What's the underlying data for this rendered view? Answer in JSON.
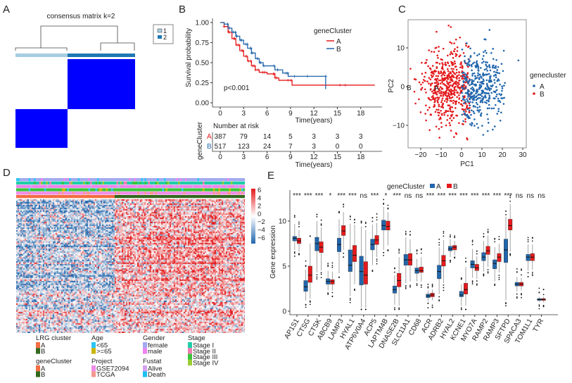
{
  "panels": {
    "a": "A",
    "b": "B",
    "c": "C",
    "d": "D",
    "e": "E"
  },
  "colors": {
    "red": "#e41a1c",
    "blue": "#2166ac",
    "consensus": "#0000ff",
    "light": "#a6cee3",
    "dark": "#1f78b4"
  },
  "chart_data": [
    {
      "type": "heatmap",
      "panel": "A",
      "title": "consensus matrix k=2",
      "legend": [
        "1",
        "2"
      ],
      "blocks": [
        {
          "cluster": "2",
          "value": 1
        },
        {
          "cluster": "1",
          "value": 1
        }
      ]
    },
    {
      "type": "line",
      "panel": "B",
      "ylabel": "Survival probability",
      "xlabel": "Time(years)",
      "ylim": [
        0,
        1
      ],
      "yticks": [
        "0.00",
        "0.25",
        "0.50",
        "0.75",
        "1.00"
      ],
      "xticks": [
        "0",
        "3",
        "6",
        "9",
        "12",
        "15",
        "18"
      ],
      "legend_title": "geneCluster",
      "pvalue": "p<0.001",
      "series": [
        {
          "name": "A",
          "color": "#e41a1c",
          "points": [
            [
              0,
              1
            ],
            [
              0.5,
              0.95
            ],
            [
              1,
              0.88
            ],
            [
              1.5,
              0.8
            ],
            [
              2,
              0.72
            ],
            [
              2.5,
              0.65
            ],
            [
              3,
              0.58
            ],
            [
              3.5,
              0.52
            ],
            [
              4,
              0.46
            ],
            [
              4.5,
              0.41
            ],
            [
              5,
              0.38
            ],
            [
              6,
              0.36
            ],
            [
              7,
              0.31
            ],
            [
              7.5,
              0.28
            ],
            [
              9.2,
              0.22
            ],
            [
              19.8,
              0.22
            ]
          ]
        },
        {
          "name": "B",
          "color": "#2166ac",
          "points": [
            [
              0,
              1
            ],
            [
              0.5,
              0.98
            ],
            [
              1,
              0.93
            ],
            [
              1.5,
              0.88
            ],
            [
              2,
              0.83
            ],
            [
              2.5,
              0.78
            ],
            [
              3,
              0.73
            ],
            [
              3.5,
              0.68
            ],
            [
              4,
              0.62
            ],
            [
              4.5,
              0.55
            ],
            [
              5,
              0.5
            ],
            [
              5.5,
              0.46
            ],
            [
              7,
              0.41
            ],
            [
              8,
              0.37
            ],
            [
              8.7,
              0.33
            ],
            [
              13.5,
              0.33
            ],
            [
              13.5,
              0.17
            ]
          ]
        }
      ],
      "risk_table": {
        "title": "Number at risk",
        "ylabel": "geneCluster",
        "xlabel": "Time(years)",
        "rows": [
          {
            "name": "A",
            "values": [
              "387",
              "79",
              "14",
              "5",
              "3",
              "3",
              "3"
            ]
          },
          {
            "name": "B",
            "values": [
              "517",
              "123",
              "24",
              "7",
              "3",
              "0",
              "0"
            ]
          }
        ]
      }
    },
    {
      "type": "scatter",
      "panel": "C",
      "xlabel": "PC1",
      "ylabel": "PC2",
      "xticks": [
        "-20",
        "-10",
        "0",
        "10",
        "20",
        "30"
      ],
      "yticks": [
        "-10",
        "0",
        "10"
      ],
      "xlim": [
        -26,
        31
      ],
      "ylim": [
        -16,
        17
      ],
      "legend_title": "genecluster",
      "series": [
        {
          "name": "A",
          "color": "#2166ac",
          "centroid": [
            9,
            0
          ]
        },
        {
          "name": "B",
          "color": "#e41a1c",
          "centroid": [
            -7,
            0
          ]
        }
      ]
    },
    {
      "type": "heatmap",
      "panel": "D",
      "colorbar_ticks": [
        "6",
        "4",
        "2",
        "0",
        "-2",
        "-4",
        "-6"
      ],
      "legends": [
        {
          "title": "LRG cluster",
          "items": [
            {
              "label": "A",
              "color": "#f46d43"
            },
            {
              "label": "B",
              "color": "#33691e"
            }
          ]
        },
        {
          "title": "geneCluster",
          "items": [
            {
              "label": "A",
              "color": "#f46d43"
            },
            {
              "label": "B",
              "color": "#33691e"
            }
          ]
        },
        {
          "title": "Age",
          "items": [
            {
              "label": "<65",
              "color": "#29c5f6"
            },
            {
              "label": ">=65",
              "color": "#c8b400"
            }
          ]
        },
        {
          "title": "Project",
          "items": [
            {
              "label": "GSE72094",
              "color": "#f08ce8"
            },
            {
              "label": "TCGA",
              "color": "#f4978e"
            }
          ]
        },
        {
          "title": "Gender",
          "items": [
            {
              "label": "female",
              "color": "#a3a8f0"
            },
            {
              "label": "male",
              "color": "#ee82ee"
            }
          ]
        },
        {
          "title": "Fustat",
          "items": [
            {
              "label": "Alive",
              "color": "#d6a0f0"
            },
            {
              "label": "Death",
              "color": "#1ec0f0"
            }
          ]
        },
        {
          "title": "Stage",
          "items": [
            {
              "label": "Stage I",
              "color": "#1fcfa8"
            },
            {
              "label": "Stage II",
              "color": "#f07cb0"
            },
            {
              "label": "Stage III",
              "color": "#3bc43b"
            },
            {
              "label": "Stage IV",
              "color": "#9acd32"
            }
          ]
        }
      ]
    },
    {
      "type": "box",
      "panel": "E",
      "ylabel": "Gene expression",
      "yticks": [
        "0",
        "5",
        "10"
      ],
      "ylim": [
        -0.4,
        13.5
      ],
      "legend_title": "geneCluster",
      "series_names": [
        "A",
        "B"
      ],
      "series_colors": [
        "#2166ac",
        "#e41a1c"
      ],
      "genes": [
        {
          "name": "AP1S1",
          "sig": "***",
          "A": [
            6.8,
            7.8,
            8.1,
            8.3,
            9.7
          ],
          "B": [
            6.6,
            7.5,
            7.8,
            8.1,
            9.0
          ]
        },
        {
          "name": "CTSG",
          "sig": "***",
          "A": [
            1.2,
            2.2,
            2.7,
            3.4,
            4.6
          ],
          "B": [
            1.4,
            3.2,
            4.0,
            5.0,
            7.5
          ]
        },
        {
          "name": "CTSK",
          "sig": "***",
          "A": [
            4.3,
            6.7,
            7.5,
            8.2,
            10.0
          ],
          "B": [
            4.5,
            6.5,
            7.1,
            7.7,
            9.3
          ]
        },
        {
          "name": "ABCB9",
          "sig": "*",
          "A": [
            2.3,
            3.0,
            3.3,
            3.6,
            4.5
          ],
          "B": [
            2.3,
            3.0,
            3.3,
            3.5,
            4.4
          ]
        },
        {
          "name": "LAMP3",
          "sig": "***",
          "A": [
            4.2,
            6.6,
            7.4,
            8.1,
            10.2
          ],
          "B": [
            6.8,
            8.4,
            8.9,
            9.5,
            11.0
          ]
        },
        {
          "name": "HYAL1",
          "sig": "***",
          "A": [
            1.7,
            4.4,
            5.1,
            6.8,
            9.7
          ],
          "B": [
            3.0,
            5.5,
            6.2,
            7.3,
            9.6
          ]
        },
        {
          "name": "ATP6V0A4",
          "sig": "ns",
          "A": [
            0.4,
            2.9,
            4.4,
            6.1,
            9.4
          ],
          "B": [
            0.4,
            3.0,
            4.0,
            5.5,
            9.0
          ]
        },
        {
          "name": "ACP5",
          "sig": "***",
          "A": [
            5.1,
            6.8,
            7.4,
            8.0,
            9.6
          ],
          "B": [
            6.0,
            7.4,
            7.9,
            8.4,
            9.8
          ]
        },
        {
          "name": "LAPTM4B",
          "sig": "*",
          "A": [
            6.8,
            9.0,
            9.5,
            10.1,
            11.6
          ],
          "B": [
            7.3,
            9.0,
            9.4,
            10.0,
            11.0
          ]
        },
        {
          "name": "DNASE2B",
          "sig": "***",
          "A": [
            0.7,
            2.0,
            2.4,
            2.8,
            4.0
          ],
          "B": [
            0.6,
            2.7,
            3.4,
            4.2,
            6.0
          ]
        },
        {
          "name": "SLC11A1",
          "sig": "ns",
          "A": [
            3.1,
            5.1,
            5.7,
            6.3,
            8.2
          ],
          "B": [
            3.3,
            5.1,
            5.7,
            6.4,
            8.0
          ]
        },
        {
          "name": "CD68",
          "sig": "ns",
          "A": [
            3.3,
            4.2,
            4.5,
            4.8,
            5.8
          ],
          "B": [
            3.3,
            4.3,
            4.5,
            4.9,
            6.0
          ]
        },
        {
          "name": "ACR",
          "sig": "***",
          "A": [
            1.1,
            1.5,
            1.7,
            1.9,
            2.3
          ],
          "B": [
            1.2,
            1.6,
            1.8,
            2.0,
            2.4
          ]
        },
        {
          "name": "ADRB2",
          "sig": "***",
          "A": [
            1.9,
            3.6,
            4.4,
            5.1,
            7.1
          ],
          "B": [
            3.1,
            5.0,
            5.6,
            6.2,
            7.9
          ]
        },
        {
          "name": "HYAL2",
          "sig": "***",
          "A": [
            6.0,
            6.7,
            6.9,
            7.2,
            8.0
          ],
          "B": [
            6.2,
            6.8,
            7.1,
            7.3,
            7.8
          ]
        },
        {
          "name": "KCNE1",
          "sig": "***",
          "A": [
            0.6,
            1.6,
            1.8,
            2.2,
            3.0
          ],
          "B": [
            0.6,
            1.9,
            2.4,
            3.1,
            4.9
          ]
        },
        {
          "name": "MYO7A",
          "sig": "***",
          "A": [
            3.7,
            4.8,
            5.2,
            5.6,
            6.9
          ],
          "B": [
            3.6,
            4.5,
            4.8,
            5.2,
            6.1
          ]
        },
        {
          "name": "RAMP2",
          "sig": "***",
          "A": [
            4.4,
            5.6,
            6.0,
            6.5,
            7.8
          ],
          "B": [
            4.9,
            6.3,
            6.7,
            7.2,
            8.4
          ]
        },
        {
          "name": "RAMP3",
          "sig": "***",
          "A": [
            3.3,
            4.7,
            5.3,
            5.7,
            7.1
          ],
          "B": [
            4.3,
            5.5,
            6.0,
            6.4,
            7.5
          ]
        },
        {
          "name": "SFTPD",
          "sig": "***",
          "A": [
            1.2,
            5.4,
            6.8,
            8.0,
            10.5
          ],
          "B": [
            6.6,
            9.0,
            9.5,
            10.2,
            11.9
          ]
        },
        {
          "name": "SPACA3",
          "sig": "ns",
          "A": [
            2.2,
            2.8,
            3.0,
            3.2,
            3.8
          ],
          "B": [
            2.3,
            2.8,
            3.0,
            3.2,
            3.7
          ]
        },
        {
          "name": "TOM1L1",
          "sig": "ns",
          "A": [
            4.5,
            5.6,
            6.0,
            6.3,
            7.4
          ],
          "B": [
            4.6,
            5.6,
            6.0,
            6.4,
            7.4
          ]
        },
        {
          "name": "TYR",
          "sig": "ns",
          "A": [
            1.0,
            1.2,
            1.3,
            1.4,
            1.6
          ],
          "B": [
            1.0,
            1.2,
            1.3,
            1.4,
            1.6
          ]
        }
      ]
    }
  ]
}
